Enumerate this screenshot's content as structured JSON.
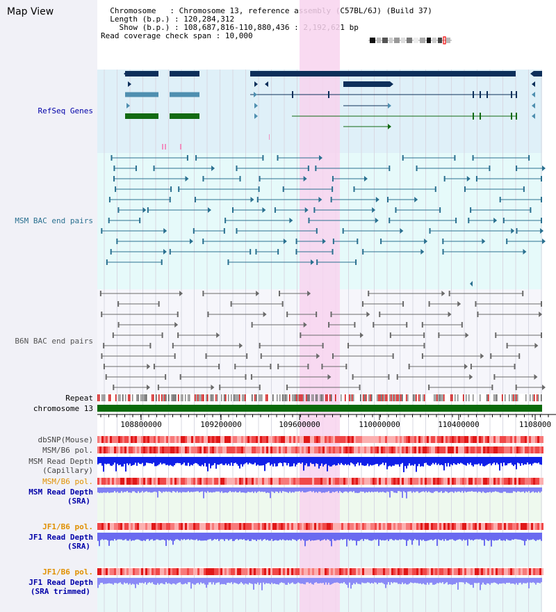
{
  "title": "Map View",
  "header": {
    "chromosome_label": "Chromosome",
    "chromosome_value": "Chromosome 13, reference assembly (C57BL/6J) (Build 37)",
    "length_label": "Length (b.p.)",
    "length_value": "120,284,312",
    "show_label": "Show (b.p.)",
    "show_value": "108,687,816-110,880,436 : 2,192,621 bp",
    "coverage_label": "Read coverage check span",
    "coverage_value": "10,000"
  },
  "tracks": {
    "refseq": "RefSeq Genes",
    "msm_bac": "MSM BAC end pairs",
    "b6n_bac": "B6N BAC end pairs",
    "repeat": "Repeat",
    "chromosome": "chromosome 13",
    "dbsnp": "dbSNP(Mouse)",
    "msm_b6_pol": "MSM/B6 pol.",
    "msm_read_depth_cap": "MSM Read Depth",
    "msm_read_depth_cap2": "(Capillary)",
    "msm_b6_pol_sra": "MSM/B6 pol.",
    "msm_read_depth_sra": "MSM Read Depth",
    "msm_read_depth_sra2": "(SRA)",
    "jf1_b6_pol": "JF1/B6 pol.",
    "jf1_read_depth": "JF1 Read Depth",
    "jf1_read_depth2": "(SRA)",
    "jf1_b6_pol_t": "JF1/B6 pol.",
    "jf1_read_depth_t": "JF1 Read Depth",
    "jf1_read_depth_t2": "(SRA trimmed)"
  },
  "axis": {
    "ticks": [
      "108800000",
      "109200000",
      "109600000",
      "110000000",
      "110400000",
      "1108000"
    ]
  },
  "colors": {
    "refseq_bg": "#dff0f8",
    "msm_bg": "#e6fafa",
    "highlight": "#f8d4ee",
    "gene_dark": "#0d2f5a",
    "gene_mid": "#4f8fb0",
    "gene_green": "#126a12",
    "bac_msm": "#2a7090",
    "bac_b6n": "#6a6a6a",
    "chrom_green": "#0a6a0a",
    "label_blue": "#0000a8",
    "label_orange": "#e09000"
  }
}
